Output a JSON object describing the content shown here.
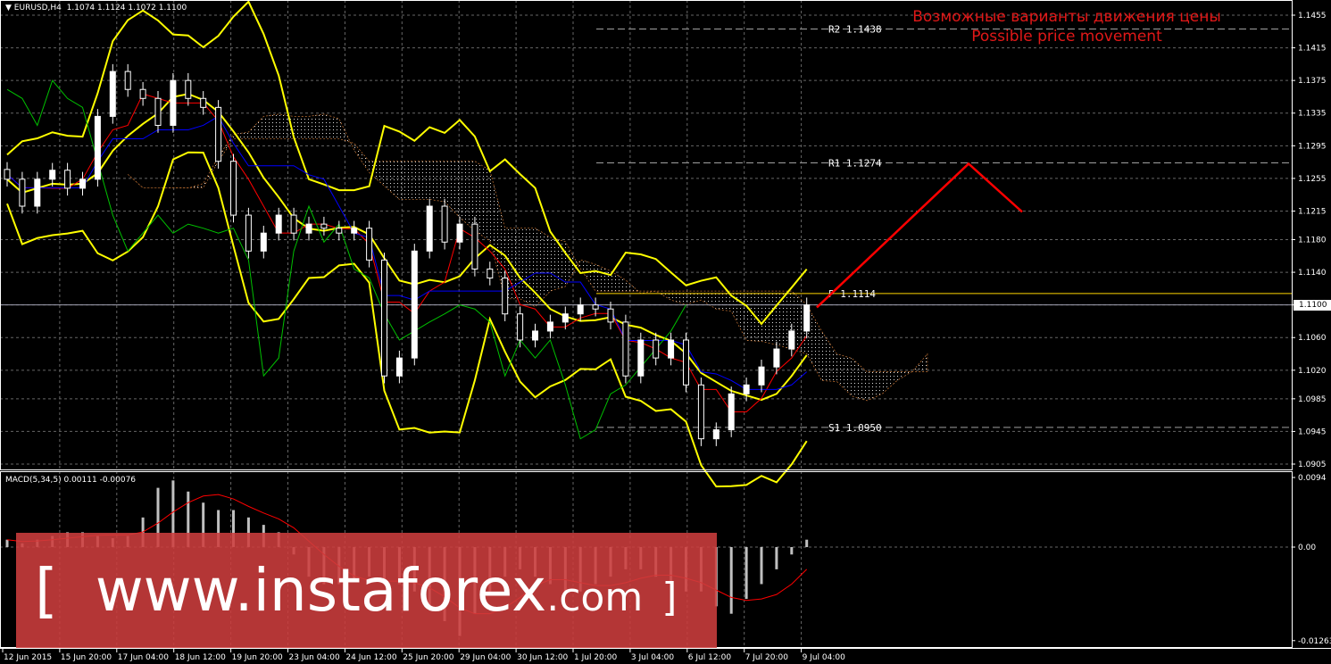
{
  "header": {
    "symbol": "EURUSD,H4",
    "ohlc": "1.1074 1.1124 1.1072 1.1100"
  },
  "annotation": {
    "line1": "Возможные варианты движения цены",
    "line2": "Possible price movement"
  },
  "watermark": {
    "open": "[",
    "site": "www.instaforex",
    "tld": ".com",
    "close": "]"
  },
  "colors": {
    "background": "#000000",
    "bull": "#ffffff",
    "bear": "#ffffff",
    "bands": "#ffff00",
    "tenkan": "#ff0000",
    "kijun": "#0000ff",
    "chikou": "#00c000",
    "forecast": "#ff0000",
    "pivot": "#ffd700",
    "macd_hist": "#c0c0c0",
    "macd_signal": "#ff0000"
  },
  "chart_data": [
    {
      "type": "candlestick",
      "title": "EURUSD,H4",
      "ylim": [
        1.0905,
        1.1455
      ],
      "y_ticks": [
        "1.1455",
        "1.1415",
        "1.1375",
        "1.1335",
        "1.1295",
        "1.1255",
        "1.1215",
        "1.1180",
        "1.1140",
        "1.1100",
        "1.1060",
        "1.1020",
        "1.0985",
        "1.0945",
        "1.0905"
      ],
      "x_ticks": [
        "12 Jun 2015",
        "15 Jun 20:00",
        "17 Jun 04:00",
        "18 Jun 12:00",
        "19 Jun 20:00",
        "23 Jun 04:00",
        "24 Jun 12:00",
        "25 Jun 20:00",
        "29 Jun 04:00",
        "30 Jun 12:00",
        "1 Jul 20:00",
        "3 Jul 04:00",
        "6 Jul 12:00",
        "7 Jul 20:00",
        "9 Jul 04:00"
      ],
      "current_price": "1.1100",
      "closes": [
        1.1254,
        1.1221,
        1.1254,
        1.1265,
        1.1243,
        1.1254,
        1.1331,
        1.1386,
        1.1364,
        1.1353,
        1.132,
        1.1375,
        1.1353,
        1.1342,
        1.1276,
        1.121,
        1.1166,
        1.1188,
        1.121,
        1.1188,
        1.1199,
        1.1194,
        1.1188,
        1.1194,
        1.1155,
        1.1013,
        1.1035,
        1.1166,
        1.1221,
        1.1177,
        1.1199,
        1.1144,
        1.1133,
        1.1089,
        1.1057,
        1.1068,
        1.1079,
        1.1089,
        1.11,
        1.1095,
        1.1079,
        1.1013,
        1.1057,
        1.1035,
        1.1057,
        1.1002,
        1.0936,
        1.0947,
        1.0991,
        1.1002,
        1.1024,
        1.1046,
        1.1068,
        1.11
      ],
      "levels": [
        {
          "label": "R2",
          "value": 1.1438,
          "text": "R2 1.1438"
        },
        {
          "label": "R1",
          "value": 1.1274,
          "text": "R1 1.1274"
        },
        {
          "label": "P",
          "value": 1.1114,
          "text": "P 1.1114"
        },
        {
          "label": "S1",
          "value": 1.095,
          "text": "S1 1.0950"
        }
      ],
      "forecast_path": [
        1.1097,
        1.1273,
        1.1214
      ],
      "grid": true
    },
    {
      "type": "bar",
      "title": "MACD(5,34,5) 0.00111 -0.00076",
      "ylim": [
        -0.01263,
        0.0094
      ],
      "y_ticks": [
        "0.0094",
        "0.00",
        "-0.01263"
      ],
      "histogram": [
        0.001,
        0.0005,
        0.001,
        0.0015,
        0.002,
        0.002,
        0.0015,
        0.0012,
        0.0015,
        0.004,
        0.008,
        0.009,
        0.0075,
        0.006,
        0.005,
        0.005,
        0.004,
        0.003,
        0.002,
        -0.001,
        -0.004,
        -0.005,
        -0.005,
        -0.0045,
        -0.004,
        -0.0045,
        -0.005,
        -0.006,
        -0.008,
        -0.01,
        -0.012,
        -0.009,
        -0.006,
        -0.004,
        -0.003,
        -0.004,
        -0.005,
        -0.006,
        -0.006,
        -0.005,
        -0.004,
        -0.003,
        -0.003,
        -0.004,
        -0.005,
        -0.006,
        -0.006,
        -0.008,
        -0.009,
        -0.007,
        -0.005,
        -0.003,
        -0.001,
        0.001
      ]
    }
  ]
}
